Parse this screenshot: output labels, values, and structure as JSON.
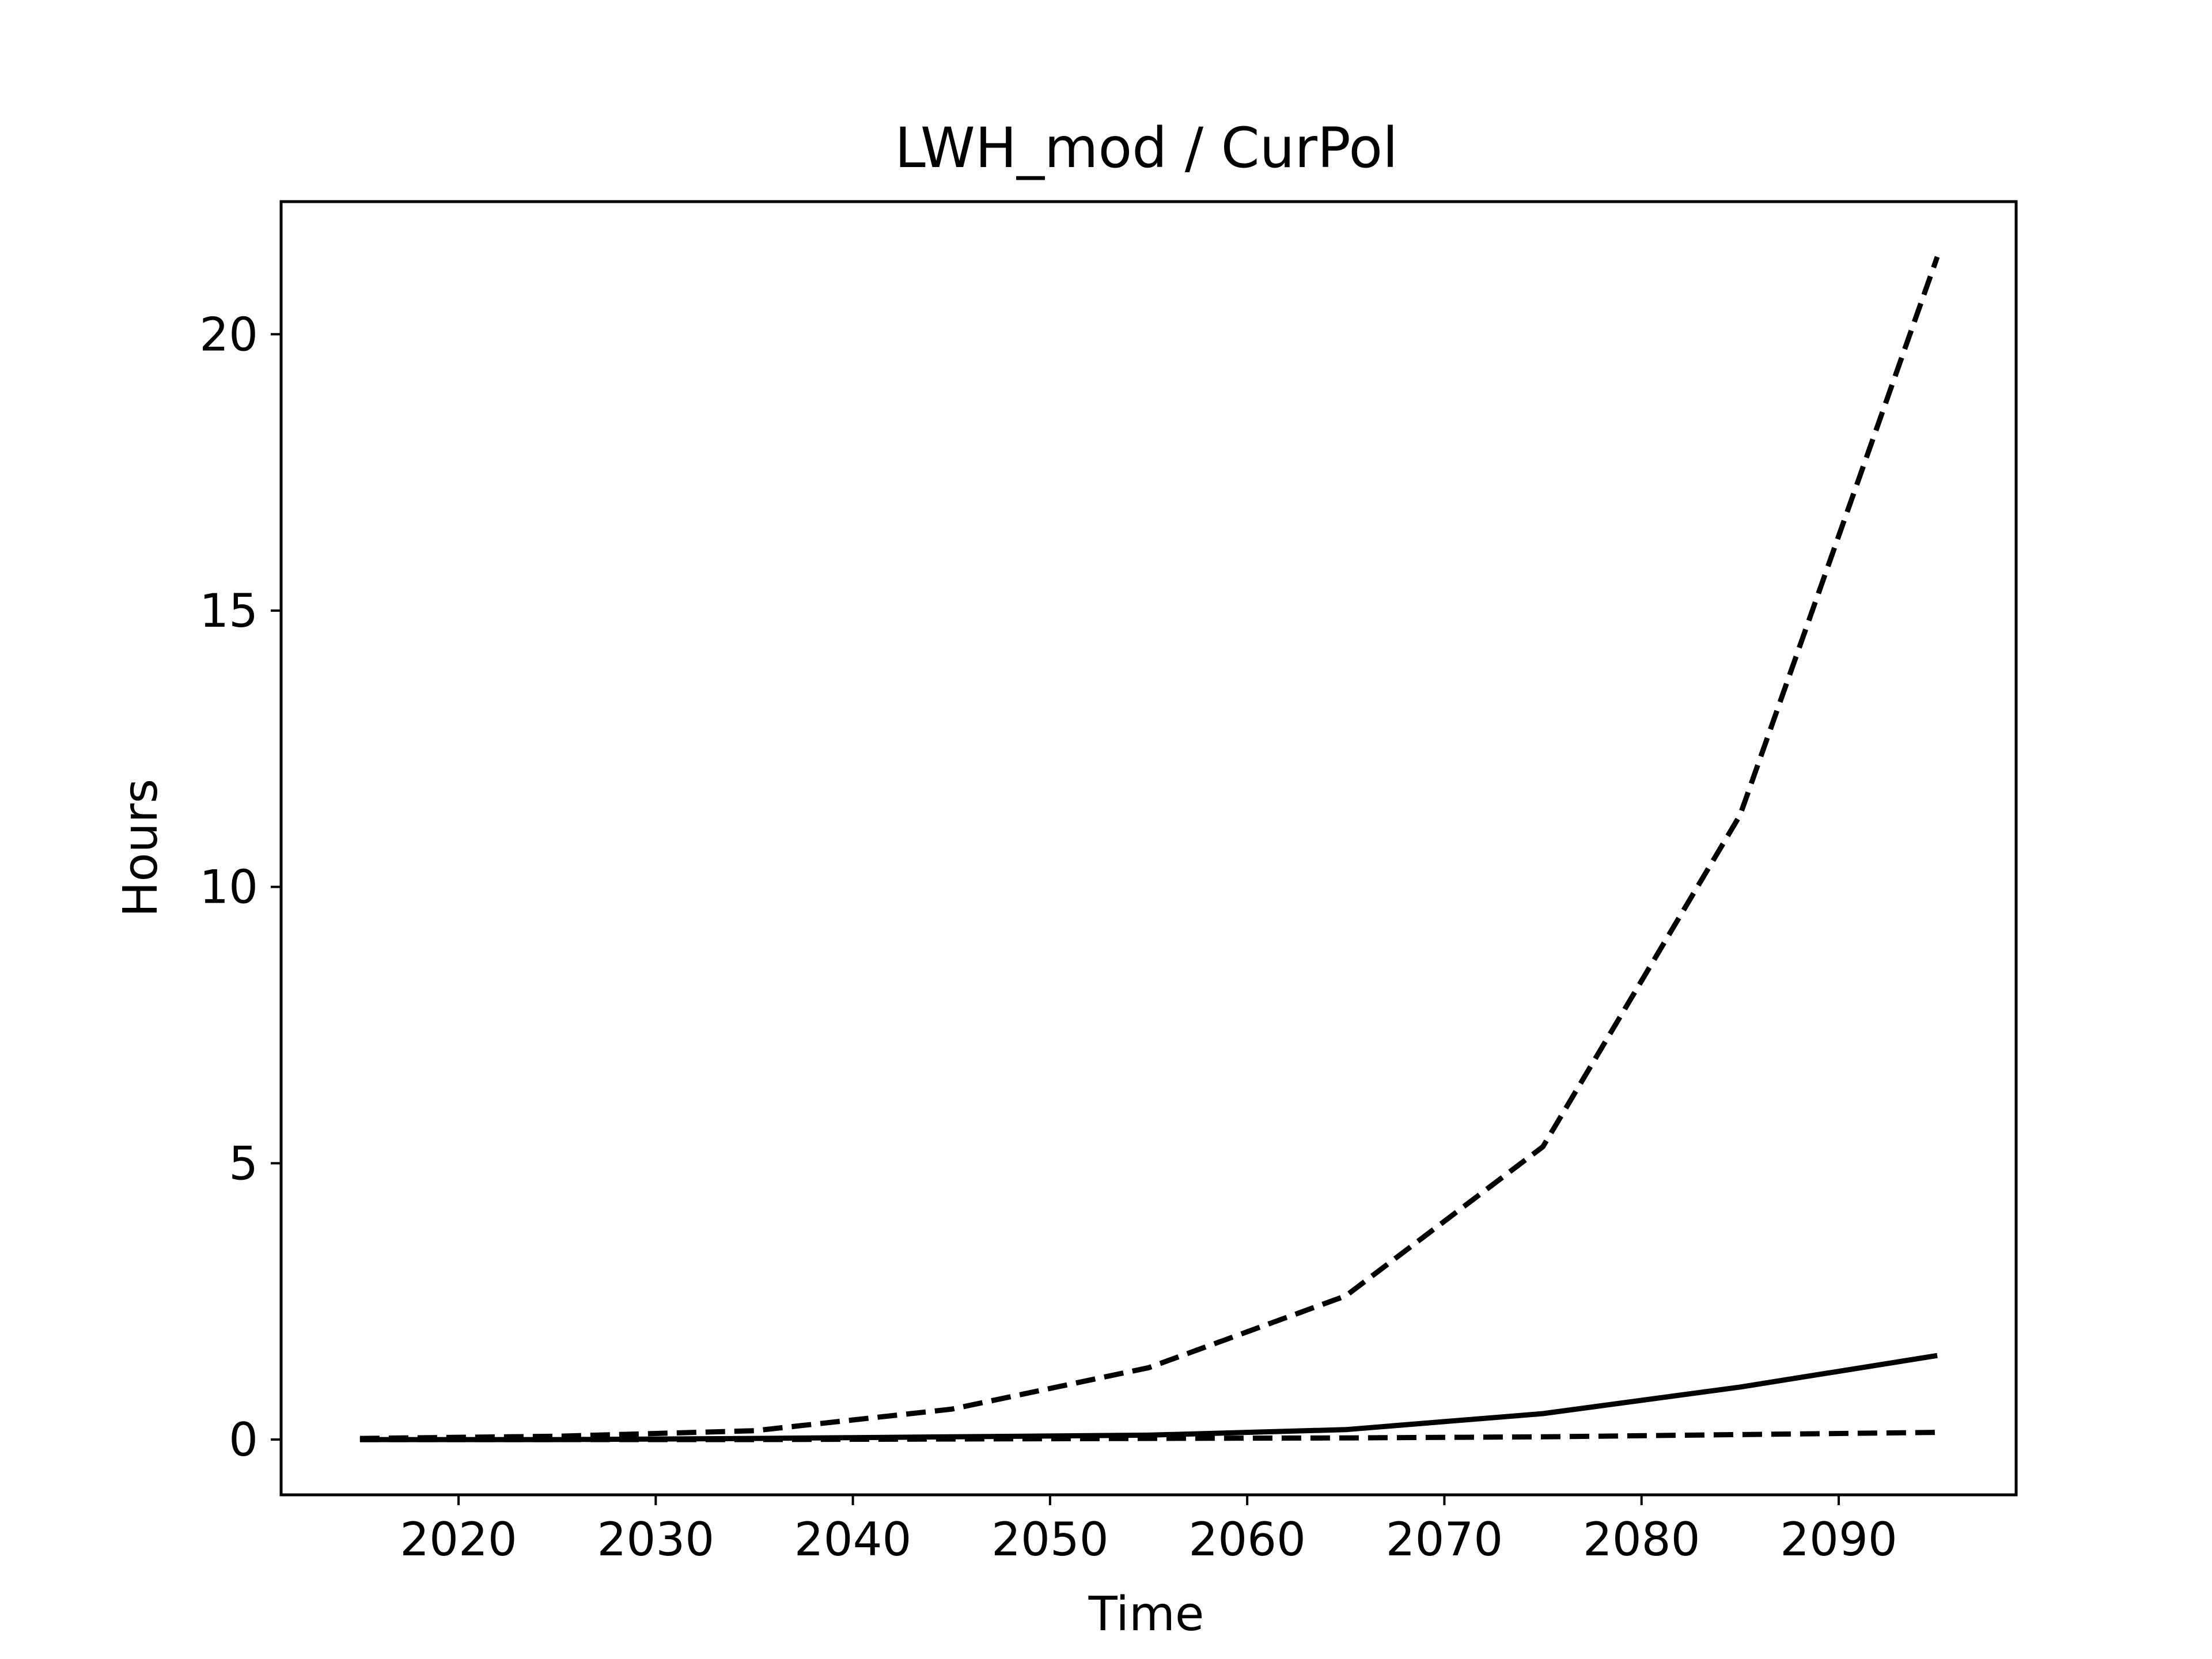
{
  "chart_data": {
    "type": "line",
    "title": "LWH_mod / CurPol",
    "xlabel": "Time",
    "ylabel": "Hours",
    "xlim": [
      2011,
      2099
    ],
    "ylim": [
      -1.0,
      22.4
    ],
    "xticks": [
      2020,
      2030,
      2040,
      2050,
      2060,
      2070,
      2080,
      2090
    ],
    "yticks": [
      0,
      5,
      10,
      15,
      20
    ],
    "grid": false,
    "legend": "none",
    "line_color": "#000000",
    "x": [
      2015,
      2025,
      2035,
      2045,
      2055,
      2065,
      2075,
      2085,
      2095
    ],
    "series": [
      {
        "style": "dashed",
        "values": [
          0.02,
          0.06,
          0.16,
          0.55,
          1.3,
          2.6,
          5.3,
          11.3,
          21.4
        ]
      },
      {
        "style": "solid",
        "values": [
          0.0,
          0.0,
          0.02,
          0.05,
          0.08,
          0.18,
          0.47,
          0.95,
          1.52
        ]
      },
      {
        "style": "dashed",
        "values": [
          0.0,
          0.0,
          0.0,
          0.01,
          0.02,
          0.03,
          0.05,
          0.09,
          0.13
        ]
      }
    ]
  }
}
